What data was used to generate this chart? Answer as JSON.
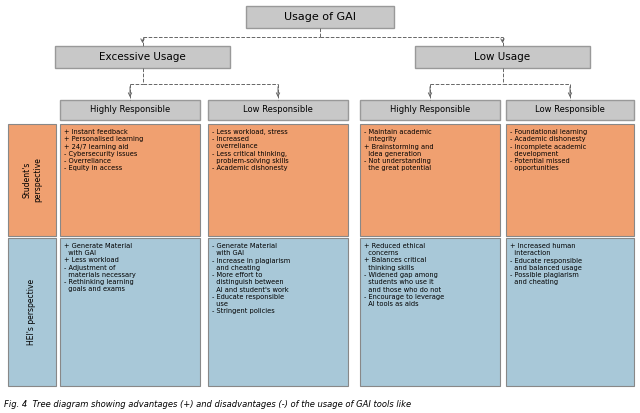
{
  "title_box": "Usage of GAI",
  "level1_boxes": [
    "Excessive Usage",
    "Low Usage"
  ],
  "level2_boxes": [
    "Highly Responsible",
    "Low Responsible",
    "Highly Responsible",
    "Low Responsible"
  ],
  "row_label_student": "Student's\nperspective",
  "row_label_hei": "HEI's perspective",
  "cell_contents": {
    "student_exc_high": "+ Instant feedback\n+ Personalised learning\n+ 24/7 learning aid\n- Cybersecurity issues\n- Overreliance\n- Equity in access",
    "student_exc_low": "- Less workload, stress\n- Increased\n  overreliance\n- Less critical thinking,\n  problem-solving skills\n- Academic dishonesty",
    "student_low_high": "- Maintain academic\n  integrity\n+ Brainstorming and\n  Idea generation\n- Not understanding\n  the great potential",
    "student_low_low": "- Foundational learning\n- Academic dishonesty\n- Incomplete academic\n  development\n- Potential missed\n  opportunities",
    "hei_exc_high": "+ Generate Material\n  with GAI\n+ Less workload\n- Adjustment of\n  materials necessary\n- Rethinking learning\n  goals and exams",
    "hei_exc_low": "- Generate Material\n  with GAI\n- Increase in plagiarism\n  and cheating\n- More effort to\n  distinguish between\n  AI and student's work\n- Educate responsible\n  use\n- Stringent policies",
    "hei_low_high": "+ Reduced ethical\n  concerns\n+ Balances critical\n  thinking skills\n- Widened gap among\n  students who use it\n  and those who do not\n- Encourage to leverage\n  AI tools as aids",
    "hei_low_low": "+ Increased human\n  interaction\n- Educate responsible\n  and balanced usage\n- Possible plagiarism\n  and cheating"
  },
  "orange_color": "#F0A070",
  "blue_color": "#A8C8D8",
  "gray_color": "#C8C8C8",
  "white_bg": "#FFFFFF",
  "caption": "Fig. 4  Tree diagram showing advantages (+) and disadvantages (-) of the usage of GAI tools like",
  "fig_width": 6.4,
  "fig_height": 4.13,
  "dpi": 100
}
